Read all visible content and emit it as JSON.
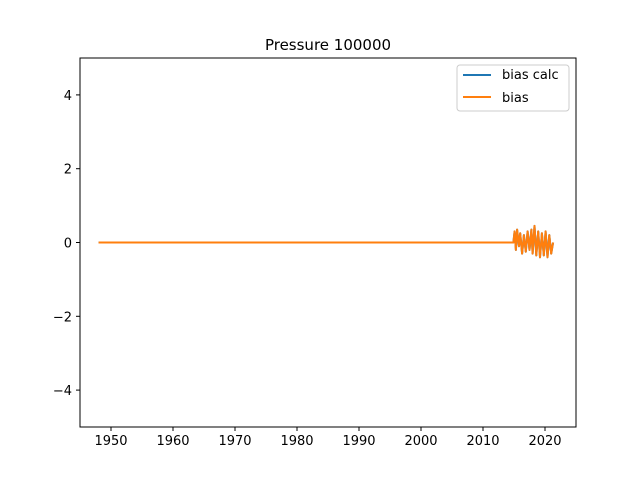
{
  "chart_data": {
    "type": "line",
    "title": "Pressure 100000",
    "xlabel": "",
    "ylabel": "",
    "xlim": [
      1945,
      2025
    ],
    "ylim": [
      -5,
      5
    ],
    "xticks": [
      1950,
      1960,
      1970,
      1980,
      1990,
      2000,
      2010,
      2020
    ],
    "yticks": [
      -4,
      -2,
      0,
      2,
      4
    ],
    "ytick_labels": [
      "−4",
      "−2",
      "0",
      "2",
      "4"
    ],
    "grid": false,
    "legend_position": "top-right",
    "series": [
      {
        "name": "bias calc",
        "color": "#1f77b4",
        "x": [
          1948.0,
          2014.9,
          2015.1,
          2015.3,
          2015.5,
          2015.8,
          2016.0,
          2016.3,
          2016.6,
          2016.9,
          2017.2,
          2017.5,
          2017.8,
          2018.0,
          2018.3,
          2018.6,
          2018.9,
          2019.2,
          2019.5,
          2019.8,
          2020.1,
          2020.4,
          2020.7,
          2021.0,
          2021.3
        ],
        "y": [
          0.0,
          0.0,
          0.3,
          -0.2,
          0.35,
          -0.1,
          0.25,
          -0.3,
          0.2,
          -0.25,
          0.3,
          -0.2,
          0.35,
          -0.3,
          0.45,
          -0.35,
          0.3,
          -0.4,
          0.25,
          -0.35,
          0.3,
          -0.4,
          0.2,
          -0.3,
          0.0
        ]
      },
      {
        "name": "bias",
        "color": "#ff7f0e",
        "x": [
          1948.0,
          2014.9,
          2015.1,
          2015.3,
          2015.5,
          2015.8,
          2016.0,
          2016.3,
          2016.6,
          2016.9,
          2017.2,
          2017.5,
          2017.8,
          2018.0,
          2018.3,
          2018.6,
          2018.9,
          2019.2,
          2019.5,
          2019.8,
          2020.1,
          2020.4,
          2020.7,
          2021.0,
          2021.3
        ],
        "y": [
          0.0,
          0.0,
          0.3,
          -0.2,
          0.35,
          -0.1,
          0.25,
          -0.3,
          0.2,
          -0.25,
          0.3,
          -0.2,
          0.35,
          -0.3,
          0.45,
          -0.35,
          0.3,
          -0.4,
          0.25,
          -0.35,
          0.3,
          -0.4,
          0.2,
          -0.3,
          0.0
        ]
      }
    ]
  }
}
